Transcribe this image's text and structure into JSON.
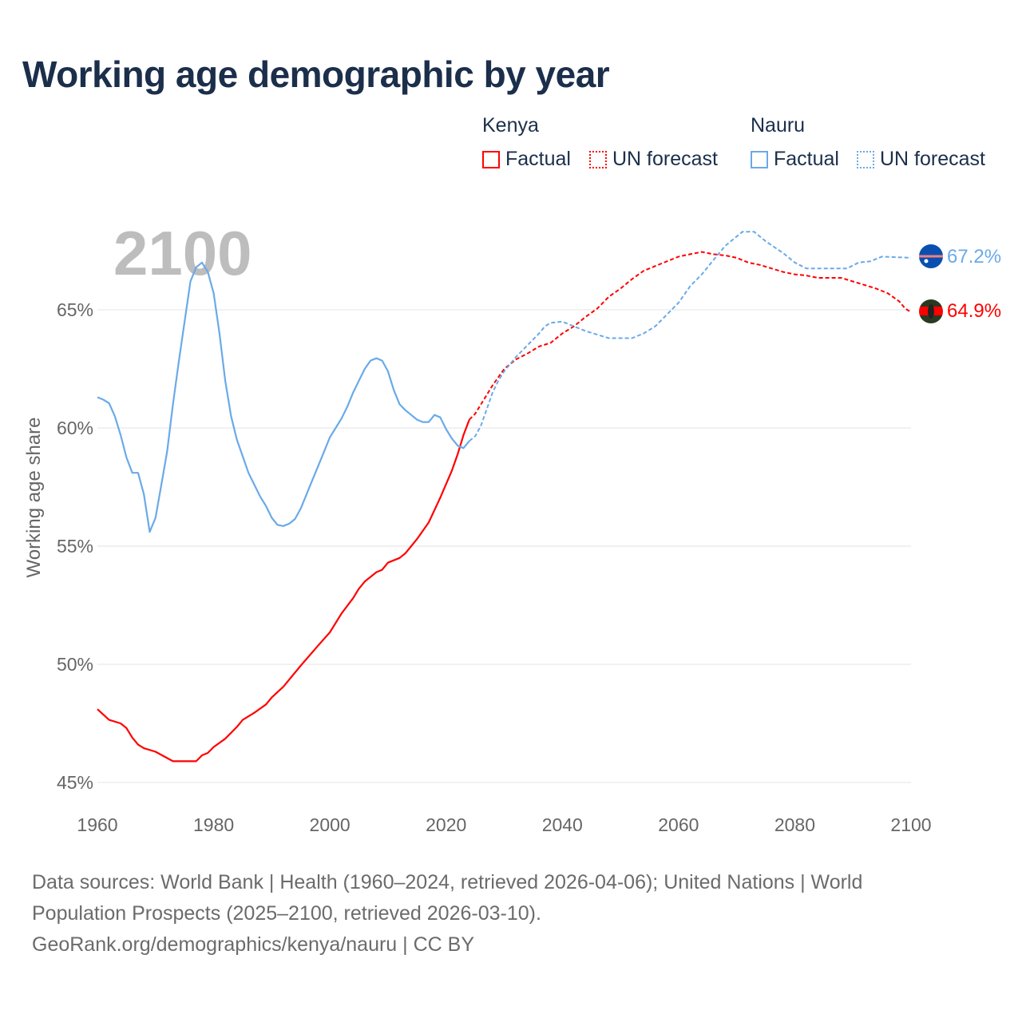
{
  "title": "Working age demographic by year",
  "legend": {
    "groups": [
      {
        "name": "Kenya",
        "color": "#ff0000",
        "items": [
          "Factual",
          "UN forecast"
        ]
      },
      {
        "name": "Nauru",
        "color": "#6aaae8",
        "items": [
          "Factual",
          "UN forecast"
        ]
      }
    ]
  },
  "year_watermark": "2100",
  "end_labels": {
    "nauru": "67.2%",
    "kenya": "64.9%"
  },
  "footer": {
    "line1": "Data sources: World Bank | Health (1960–2024, retrieved 2026-04-06); United Nations | World",
    "line2": "Population Prospects (2025–2100, retrieved 2026-03-10).",
    "line3": "GeoRank.org/demographics/kenya/nauru | CC BY"
  },
  "chart_data": {
    "type": "line",
    "title": "Working age demographic by year",
    "xlabel": "",
    "ylabel": "Working age share",
    "xlim": [
      1960,
      2100
    ],
    "ylim": [
      45,
      68.7
    ],
    "xticks": [
      1960,
      1980,
      2000,
      2020,
      2040,
      2060,
      2080,
      2100
    ],
    "xtick_labels": [
      "1960",
      "1980",
      "2000",
      "2020",
      "2040",
      "2060",
      "2080",
      "2100"
    ],
    "yticks": [
      45,
      50,
      55,
      60,
      65
    ],
    "ytick_labels": [
      "45%",
      "50%",
      "55%",
      "60%",
      "65%"
    ],
    "grid": true,
    "forecast_start": 2024,
    "series": [
      {
        "name": "Kenya",
        "color": "#ff0000",
        "x": [
          1960,
          1962,
          1964,
          1965,
          1966,
          1967,
          1968,
          1970,
          1973,
          1977,
          1978,
          1979,
          1980,
          1982,
          1983,
          1984,
          1985,
          1987,
          1989,
          1990,
          1992,
          1995,
          1998,
          2000,
          2002,
          2004,
          2005,
          2006,
          2008,
          2009,
          2010,
          2012,
          2013,
          2015,
          2017,
          2019,
          2021,
          2022,
          2023,
          2024,
          2025,
          2026,
          2028,
          2030,
          2032,
          2034,
          2036,
          2038,
          2040,
          2042,
          2044,
          2046,
          2048,
          2050,
          2052,
          2054,
          2056,
          2058,
          2060,
          2062,
          2064,
          2066,
          2068,
          2070,
          2072,
          2074,
          2076,
          2078,
          2080,
          2082,
          2084,
          2088,
          2090,
          2092,
          2094,
          2096,
          2098,
          2099,
          2100
        ],
        "y": [
          48.1,
          47.65,
          47.5,
          47.3,
          46.9,
          46.6,
          46.45,
          46.3,
          45.9,
          45.9,
          46.15,
          46.25,
          46.5,
          46.85,
          47.1,
          47.35,
          47.65,
          47.95,
          48.3,
          48.6,
          49.05,
          49.95,
          50.8,
          51.35,
          52.15,
          52.8,
          53.2,
          53.5,
          53.9,
          54.0,
          54.3,
          54.5,
          54.7,
          55.3,
          56.0,
          57.05,
          58.2,
          58.9,
          59.7,
          60.35,
          60.6,
          61.0,
          61.8,
          62.5,
          62.9,
          63.15,
          63.45,
          63.6,
          64.0,
          64.3,
          64.7,
          65.05,
          65.55,
          65.9,
          66.3,
          66.65,
          66.85,
          67.05,
          67.25,
          67.35,
          67.45,
          67.35,
          67.3,
          67.2,
          67.0,
          66.9,
          66.75,
          66.6,
          66.5,
          66.45,
          66.35,
          66.35,
          66.2,
          66.05,
          65.9,
          65.7,
          65.35,
          65.05,
          64.9
        ]
      },
      {
        "name": "Nauru",
        "color": "#6aaae8",
        "x": [
          1960,
          1961,
          1962,
          1963,
          1964,
          1965,
          1966,
          1967,
          1968,
          1969,
          1970,
          1971,
          1972,
          1973,
          1974,
          1975,
          1976,
          1977,
          1978,
          1979,
          1980,
          1981,
          1982,
          1983,
          1984,
          1985,
          1986,
          1987,
          1988,
          1989,
          1990,
          1991,
          1992,
          1993,
          1994,
          1995,
          1996,
          1997,
          1998,
          1999,
          2000,
          2001,
          2002,
          2003,
          2004,
          2005,
          2006,
          2007,
          2008,
          2009,
          2010,
          2011,
          2012,
          2013,
          2014,
          2015,
          2016,
          2017,
          2018,
          2019,
          2020,
          2021,
          2022,
          2023,
          2024,
          2025,
          2026,
          2027,
          2028,
          2029,
          2030,
          2032,
          2034,
          2036,
          2037,
          2038,
          2040,
          2042,
          2044,
          2046,
          2048,
          2050,
          2052,
          2054,
          2056,
          2058,
          2060,
          2062,
          2064,
          2066,
          2068,
          2070,
          2071,
          2073,
          2075,
          2078,
          2080,
          2082,
          2085,
          2089,
          2091,
          2093,
          2095,
          2100
        ],
        "y": [
          61.3,
          61.2,
          61.05,
          60.5,
          59.7,
          58.75,
          58.1,
          58.1,
          57.2,
          55.6,
          56.2,
          57.6,
          59.0,
          61.0,
          62.8,
          64.5,
          66.2,
          66.8,
          67.0,
          66.6,
          65.7,
          64.0,
          62.0,
          60.5,
          59.5,
          58.8,
          58.1,
          57.6,
          57.1,
          56.7,
          56.2,
          55.9,
          55.85,
          55.95,
          56.15,
          56.6,
          57.2,
          57.8,
          58.4,
          59.0,
          59.6,
          60.0,
          60.4,
          60.9,
          61.5,
          62.0,
          62.5,
          62.85,
          62.95,
          62.85,
          62.4,
          61.6,
          61.0,
          60.75,
          60.55,
          60.35,
          60.25,
          60.25,
          60.55,
          60.45,
          59.95,
          59.55,
          59.25,
          59.15,
          59.45,
          59.65,
          60.1,
          60.8,
          61.5,
          62.0,
          62.4,
          63.0,
          63.5,
          64.0,
          64.3,
          64.45,
          64.5,
          64.3,
          64.1,
          63.95,
          63.8,
          63.8,
          63.8,
          64.0,
          64.3,
          64.8,
          65.3,
          66.0,
          66.5,
          67.1,
          67.7,
          68.1,
          68.3,
          68.3,
          67.9,
          67.4,
          67.0,
          66.75,
          66.75,
          66.75,
          67.0,
          67.05,
          67.25,
          67.2
        ]
      }
    ]
  }
}
